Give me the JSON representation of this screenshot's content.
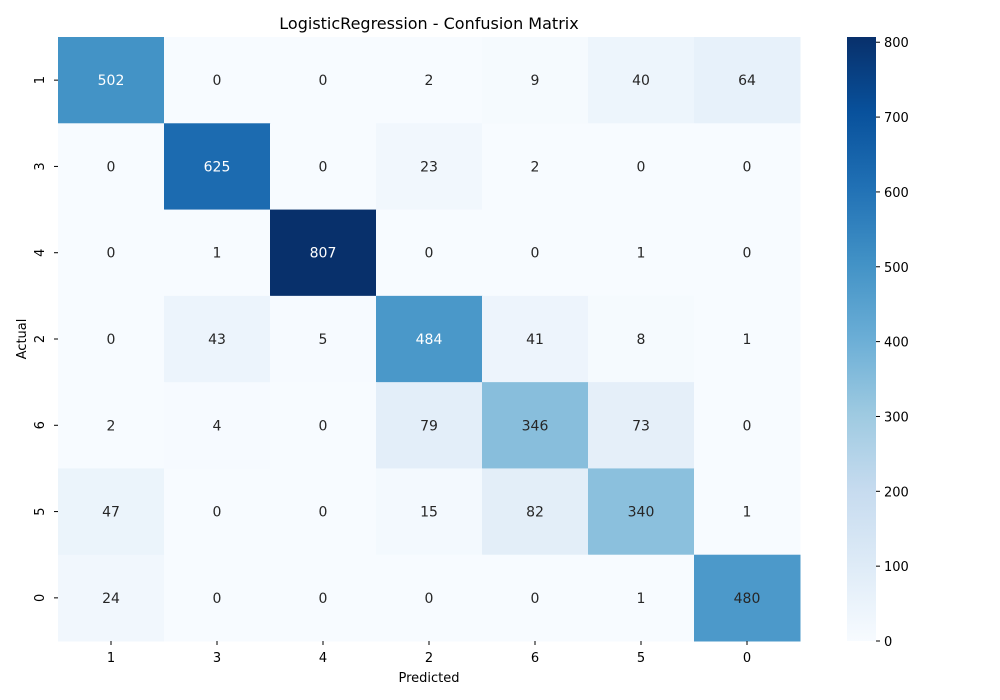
{
  "chart_data": {
    "type": "heatmap",
    "title": "LogisticRegression - Confusion Matrix",
    "xlabel": "Predicted",
    "ylabel": "Actual",
    "x_categories": [
      "1",
      "3",
      "4",
      "2",
      "6",
      "5",
      "0"
    ],
    "y_categories": [
      "1",
      "3",
      "4",
      "2",
      "6",
      "5",
      "0"
    ],
    "values": [
      [
        502,
        0,
        0,
        2,
        9,
        40,
        64
      ],
      [
        0,
        625,
        0,
        23,
        2,
        0,
        0
      ],
      [
        0,
        1,
        807,
        0,
        0,
        1,
        0
      ],
      [
        0,
        43,
        5,
        484,
        41,
        8,
        1
      ],
      [
        2,
        4,
        0,
        79,
        346,
        73,
        0
      ],
      [
        47,
        0,
        0,
        15,
        82,
        340,
        1
      ],
      [
        24,
        0,
        0,
        0,
        0,
        1,
        480
      ]
    ],
    "colorbar": {
      "colormap": "Blues",
      "min": 0,
      "max": 807,
      "ticks": [
        0,
        100,
        200,
        300,
        400,
        500,
        600,
        700,
        800
      ]
    }
  }
}
